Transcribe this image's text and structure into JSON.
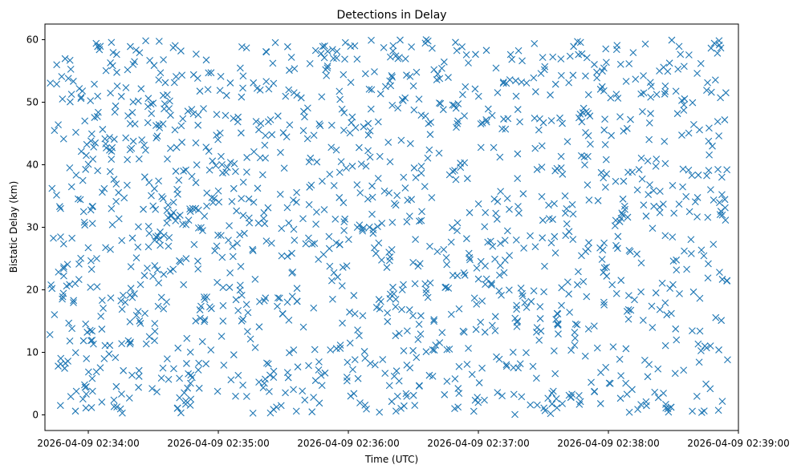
{
  "chart_data": {
    "type": "scatter",
    "title": "Detections in Delay",
    "xlabel": "Time (UTC)",
    "ylabel": "Bistatic Delay (km)",
    "marker": "x",
    "series_color": "#1f77b4",
    "x_unit": "seconds after 2026-04-09 02:33:40 UTC",
    "xlim": [
      0,
      320
    ],
    "ylim": [
      -2.5,
      62.5
    ],
    "x_tick_labels": [
      {
        "value": 20,
        "label": "2026-04-09 02:34:00"
      },
      {
        "value": 80,
        "label": "2026-04-09 02:35:00"
      },
      {
        "value": 140,
        "label": "2026-04-09 02:36:00"
      },
      {
        "value": 200,
        "label": "2026-04-09 02:37:00"
      },
      {
        "value": 260,
        "label": "2026-04-09 02:38:00"
      },
      {
        "value": 320,
        "label": "2026-04-09 02:39:00"
      }
    ],
    "y_tick_labels": [
      {
        "value": 0,
        "label": "0"
      },
      {
        "value": 10,
        "label": "10"
      },
      {
        "value": 20,
        "label": "20"
      },
      {
        "value": 30,
        "label": "30"
      },
      {
        "value": 40,
        "label": "40"
      },
      {
        "value": 50,
        "label": "50"
      },
      {
        "value": 60,
        "label": "60"
      }
    ],
    "series": [
      {
        "name": "Detections",
        "x_range": [
          2,
          315
        ],
        "y_range": [
          0,
          60
        ],
        "count": 1500,
        "random_seed": 20260409
      }
    ]
  }
}
